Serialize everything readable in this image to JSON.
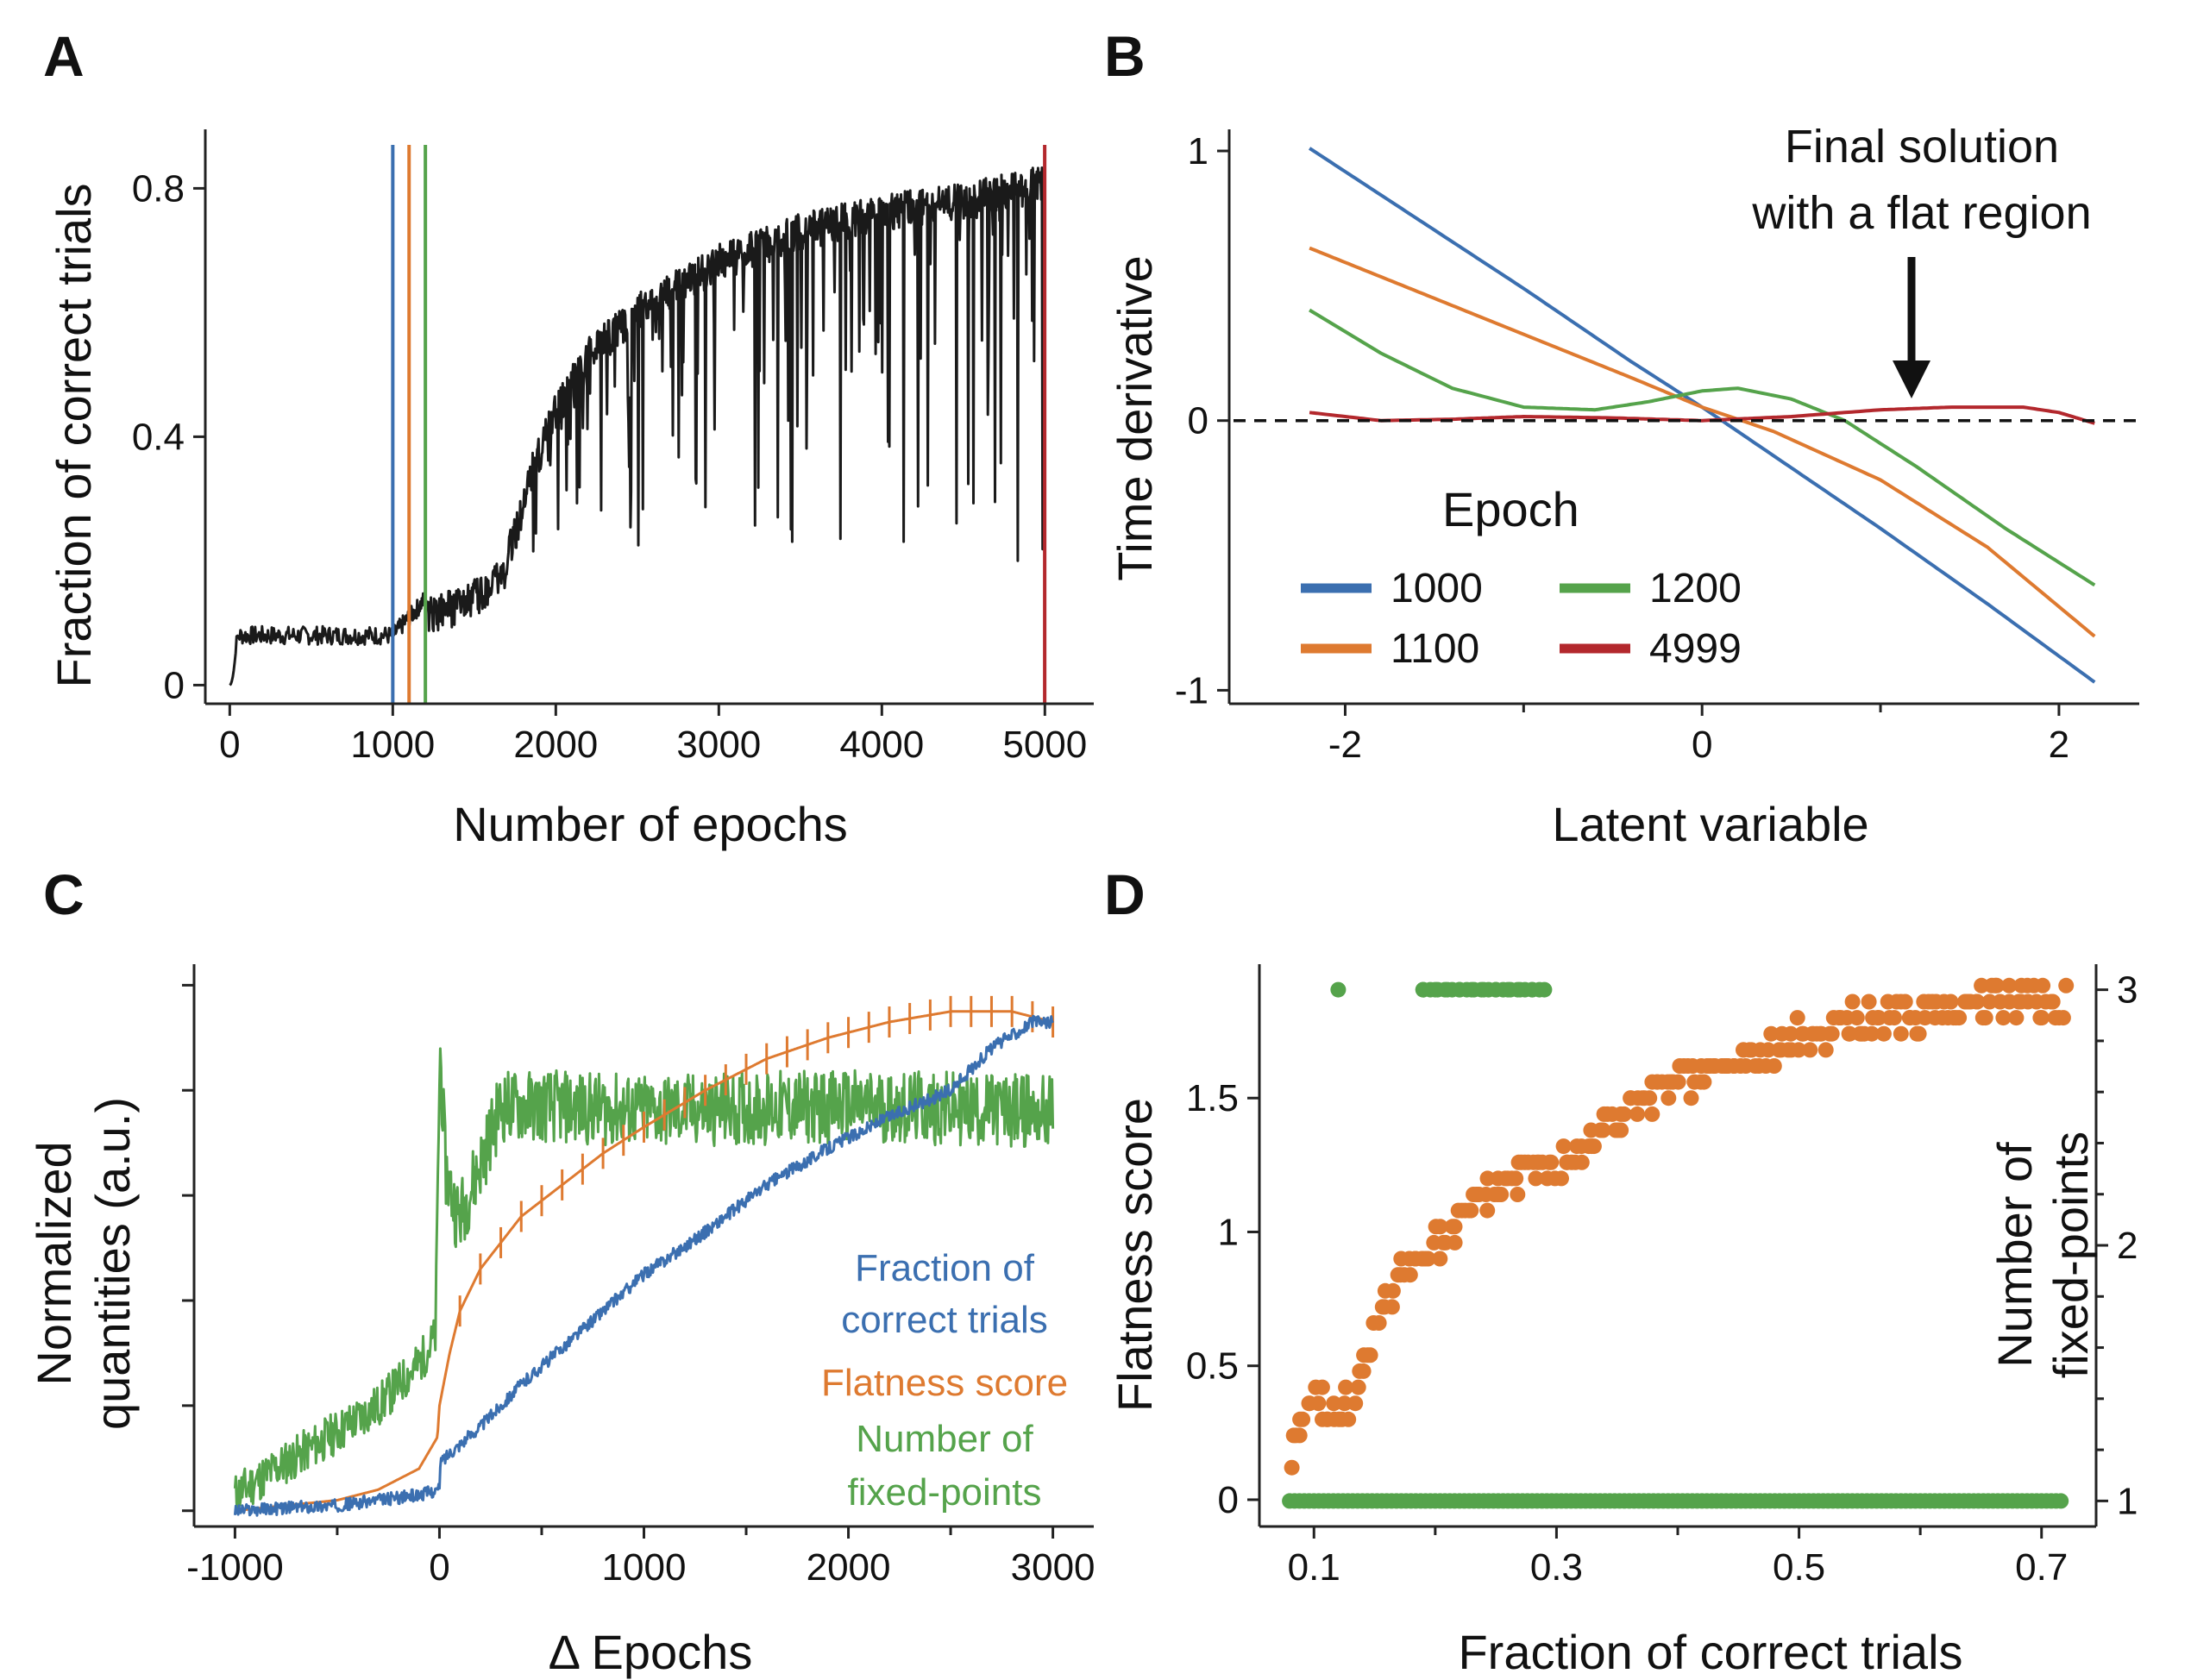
{
  "colors": {
    "blue": "#3b6fb0",
    "orange": "#de7a30",
    "green": "#55a34b",
    "red": "#b3282d",
    "black": "#1a1a1a"
  },
  "chart_data": [
    {
      "id": "A",
      "type": "line",
      "panel_letter": "A",
      "xlabel": "Number of epochs",
      "ylabel": "Fraction of correct trials",
      "xlim": [
        -150,
        5300
      ],
      "ylim": [
        -0.03,
        0.895
      ],
      "xticks": [
        0,
        1000,
        2000,
        3000,
        4000,
        5000
      ],
      "xtick_labels": [
        "0",
        "1000",
        "2000",
        "3000",
        "4000",
        "5000"
      ],
      "yticks": [
        0,
        0.4,
        0.8
      ],
      "ytick_labels": [
        "0",
        "0.4",
        "0.8"
      ],
      "series": [
        {
          "name": "Fraction of correct trials (mean)",
          "color": "black",
          "x": [
            0,
            50,
            1000,
            1140,
            1200,
            1450,
            1650,
            1750,
            1850,
            2000,
            2200,
            2500,
            3000,
            3500,
            4000,
            4500,
            5000
          ],
          "y": [
            0.0,
            0.08,
            0.08,
            0.12,
            0.14,
            0.16,
            0.2,
            0.27,
            0.37,
            0.47,
            0.56,
            0.63,
            0.71,
            0.76,
            0.79,
            0.81,
            0.84
          ]
        },
        {
          "name": "Fraction of correct trials (lower envelope)",
          "color": "black",
          "x": [
            0,
            50,
            1000,
            1140,
            1200,
            1450,
            1650,
            1750,
            2000,
            2500,
            3000,
            3500,
            4000,
            4500,
            5000
          ],
          "y": [
            0.0,
            0.07,
            0.07,
            0.1,
            0.12,
            0.13,
            0.15,
            0.16,
            0.2,
            0.22,
            0.24,
            0.22,
            0.2,
            0.18,
            0.2
          ]
        }
      ],
      "vlines": [
        {
          "x": 1000,
          "color": "blue"
        },
        {
          "x": 1100,
          "color": "orange"
        },
        {
          "x": 1200,
          "color": "green"
        },
        {
          "x": 4999,
          "color": "red"
        }
      ]
    },
    {
      "id": "B",
      "type": "line",
      "panel_letter": "B",
      "xlabel": "Latent variable",
      "ylabel": "Time derivative",
      "xlim": [
        -2.65,
        2.45
      ],
      "ylim": [
        -1.05,
        1.08
      ],
      "xticks": [
        -2,
        0,
        2
      ],
      "xtick_labels": [
        "-2",
        "0",
        "2"
      ],
      "minor_xticks": [
        -1,
        1
      ],
      "yticks": [
        -1,
        0,
        1
      ],
      "ytick_labels": [
        "-1",
        "0",
        "1"
      ],
      "hline": {
        "y": 0,
        "style": "dashed"
      },
      "annotation": {
        "lines": [
          "Final solution",
          "with a flat region"
        ],
        "arrow_to": [
          1.2,
          0.1
        ]
      },
      "legend": {
        "title": "Epoch",
        "placement": "center",
        "columns": 2,
        "entries": [
          {
            "label": "1000",
            "color": "blue"
          },
          {
            "label": "1200",
            "color": "green"
          },
          {
            "label": "1100",
            "color": "orange"
          },
          {
            "label": "4999",
            "color": "red"
          }
        ]
      },
      "series": [
        {
          "name": "1000",
          "color": "blue",
          "x": [
            -2.2,
            -1.6,
            -1.0,
            -0.4,
            0.0,
            0.4,
            1.0,
            1.6,
            2.2
          ],
          "y": [
            1.01,
            0.75,
            0.49,
            0.22,
            0.05,
            -0.13,
            -0.4,
            -0.68,
            -0.97
          ]
        },
        {
          "name": "1100",
          "color": "orange",
          "x": [
            -2.2,
            -1.6,
            -1.0,
            -0.4,
            0.0,
            0.4,
            1.0,
            1.6,
            2.2
          ],
          "y": [
            0.64,
            0.48,
            0.32,
            0.16,
            0.05,
            -0.04,
            -0.22,
            -0.47,
            -0.8
          ]
        },
        {
          "name": "1200",
          "color": "green",
          "x": [
            -2.2,
            -1.8,
            -1.4,
            -1.0,
            -0.6,
            -0.3,
            0.0,
            0.2,
            0.5,
            0.8,
            1.2,
            1.7,
            2.2
          ],
          "y": [
            0.41,
            0.25,
            0.12,
            0.05,
            0.04,
            0.07,
            0.11,
            0.12,
            0.08,
            0.0,
            -0.17,
            -0.4,
            -0.61
          ]
        },
        {
          "name": "4999",
          "color": "red",
          "x": [
            -2.2,
            -1.8,
            -1.4,
            -1.0,
            -0.5,
            0.0,
            0.5,
            1.0,
            1.4,
            1.8,
            2.0,
            2.2
          ],
          "y": [
            0.03,
            0.0,
            0.005,
            0.015,
            0.01,
            0.0,
            0.015,
            0.04,
            0.05,
            0.05,
            0.03,
            -0.01
          ]
        }
      ]
    },
    {
      "id": "C",
      "type": "line",
      "panel_letter": "C",
      "xlabel": "Δ Epochs",
      "ylabel_lines": [
        "Normalized",
        "quantities (a.u.)"
      ],
      "xlim": [
        -1200,
        3200
      ],
      "ylim": [
        -0.03,
        1.04
      ],
      "xticks": [
        -1000,
        0,
        1000,
        2000,
        3000
      ],
      "xtick_labels": [
        "-1000",
        "0",
        "1000",
        "2000",
        "3000"
      ],
      "minor_xticks": [
        -500,
        500,
        1500,
        2500
      ],
      "yticks_unlabeled": [
        0.0,
        0.2,
        0.4,
        0.6,
        0.8,
        1.0
      ],
      "series": [
        {
          "name": "Fraction of correct trials",
          "color": "blue",
          "x": [
            -1000,
            -500,
            -100,
            0,
            1,
            50,
            200,
            400,
            600,
            800,
            1000,
            1300,
            1600,
            1900,
            2200,
            2500,
            2700,
            2900,
            3000
          ],
          "y": [
            0.0,
            0.01,
            0.03,
            0.04,
            0.09,
            0.11,
            0.16,
            0.24,
            0.31,
            0.38,
            0.45,
            0.53,
            0.62,
            0.69,
            0.75,
            0.8,
            0.88,
            0.93,
            0.93
          ]
        },
        {
          "name": "Flatness score",
          "color": "orange",
          "x": [
            -1000,
            -500,
            -300,
            -100,
            -10,
            0,
            50,
            100,
            200,
            400,
            600,
            800,
            1000,
            1300,
            1600,
            1900,
            2200,
            2500,
            2800,
            3000
          ],
          "y": [
            0.0,
            0.02,
            0.04,
            0.08,
            0.14,
            0.2,
            0.3,
            0.38,
            0.46,
            0.56,
            0.62,
            0.68,
            0.73,
            0.8,
            0.86,
            0.9,
            0.93,
            0.95,
            0.95,
            0.93
          ]
        },
        {
          "name": "Number of fixed-points",
          "color": "green",
          "x": [
            -1000,
            -800,
            -500,
            -300,
            -100,
            -20,
            0,
            30,
            100,
            200,
            300,
            500,
            1000,
            2000,
            3000
          ],
          "y": [
            0.03,
            0.08,
            0.15,
            0.2,
            0.28,
            0.33,
            0.82,
            0.6,
            0.56,
            0.66,
            0.77,
            0.77,
            0.76,
            0.77,
            0.76
          ]
        }
      ],
      "labels": [
        {
          "lines": [
            "Fraction of",
            "correct trials"
          ],
          "color": "blue"
        },
        {
          "lines": [
            "Flatness score"
          ],
          "color": "orange"
        },
        {
          "lines": [
            "Number of",
            "fixed-points"
          ],
          "color": "green"
        }
      ]
    },
    {
      "id": "D",
      "type": "scatter",
      "panel_letter": "D",
      "xlabel": "Fraction of correct trials",
      "ylabel_left": "Flatness score",
      "ylabel_right_lines": [
        "Number of",
        "fixed-points"
      ],
      "xlim": [
        0.055,
        0.745
      ],
      "ylim_left": [
        -0.1,
        2.0
      ],
      "ylim_right": [
        0.9,
        3.1
      ],
      "xticks": [
        0.1,
        0.3,
        0.5,
        0.7
      ],
      "xtick_labels": [
        "0.1",
        "0.3",
        "0.5",
        "0.7"
      ],
      "minor_xticks": [
        0.2,
        0.4,
        0.6
      ],
      "yticks_left": [
        0,
        0.5,
        1,
        1.5
      ],
      "ytick_labels_left": [
        "0",
        "0.5",
        "1",
        "1.5"
      ],
      "yticks_right": [
        1,
        2,
        3
      ],
      "ytick_labels_right": [
        "1",
        "2",
        "3"
      ],
      "minor_yticks_right": [
        1.2,
        1.4,
        1.6,
        1.8,
        2.2,
        2.4,
        2.6,
        2.8
      ],
      "series": [
        {
          "name": "Flatness score",
          "color": "orange",
          "axis": "left",
          "x": [
            0.08,
            0.085,
            0.09,
            0.1,
            0.11,
            0.12,
            0.13,
            0.14,
            0.15,
            0.16,
            0.17,
            0.18,
            0.19,
            0.2,
            0.22,
            0.24,
            0.26,
            0.28,
            0.3,
            0.32,
            0.34,
            0.36,
            0.38,
            0.4,
            0.42,
            0.44,
            0.46,
            0.48,
            0.5,
            0.52,
            0.54,
            0.56,
            0.58,
            0.6,
            0.62,
            0.64,
            0.66,
            0.68,
            0.7,
            0.72
          ],
          "y": [
            0.15,
            0.22,
            0.3,
            0.36,
            0.33,
            0.3,
            0.38,
            0.45,
            0.6,
            0.75,
            0.85,
            0.9,
            0.9,
            0.95,
            1.05,
            1.12,
            1.2,
            1.25,
            1.28,
            1.3,
            1.4,
            1.45,
            1.5,
            1.55,
            1.58,
            1.62,
            1.66,
            1.68,
            1.72,
            1.75,
            1.78,
            1.78,
            1.8,
            1.82,
            1.85,
            1.86,
            1.87,
            1.87,
            1.87,
            1.85
          ]
        },
        {
          "name": "Number of fixed-points",
          "color": "green",
          "axis": "right",
          "x": [
            0.08,
            0.12,
            0.16,
            0.2,
            0.24,
            0.28,
            0.32,
            0.36,
            0.4,
            0.44,
            0.48,
            0.52,
            0.56,
            0.6,
            0.64,
            0.68,
            0.72,
            0.12,
            0.19,
            0.2,
            0.21,
            0.22,
            0.23,
            0.24,
            0.25,
            0.26,
            0.27,
            0.28,
            0.29
          ],
          "y": [
            1,
            1,
            1,
            1,
            1,
            1,
            1,
            1,
            1,
            1,
            1,
            1,
            1,
            1,
            1,
            1,
            1,
            3,
            3,
            3,
            3,
            3,
            3,
            3,
            3,
            3,
            3,
            3,
            3
          ]
        }
      ]
    }
  ]
}
